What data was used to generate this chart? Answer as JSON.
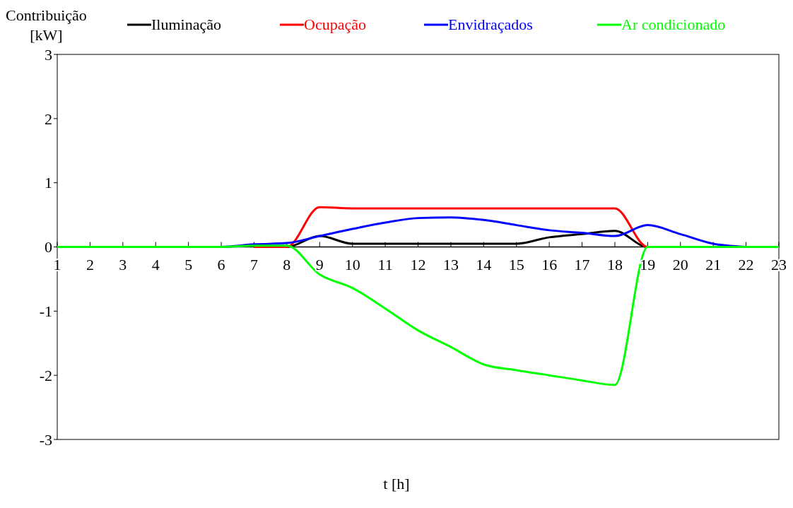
{
  "chart_data": {
    "type": "line",
    "xlabel": "t [h]",
    "ylabel": "Contribuição [kW]",
    "x": [
      1,
      2,
      3,
      4,
      5,
      6,
      7,
      8,
      9,
      10,
      11,
      12,
      13,
      14,
      15,
      16,
      17,
      18,
      19,
      20,
      21,
      22,
      23
    ],
    "series": [
      {
        "name": "Iluminação",
        "color": "#000000",
        "values": [
          null,
          null,
          null,
          null,
          null,
          null,
          0,
          0,
          0.17,
          0.05,
          0.05,
          0.05,
          0.05,
          0.05,
          0.05,
          0.15,
          0.2,
          0.25,
          0,
          0,
          null,
          null,
          null
        ]
      },
      {
        "name": "Ocupação",
        "color": "#ff0000",
        "values": [
          null,
          null,
          null,
          null,
          null,
          null,
          0,
          0,
          0.62,
          0.6,
          0.6,
          0.6,
          0.6,
          0.6,
          0.6,
          0.6,
          0.6,
          0.6,
          0,
          0,
          null,
          null,
          null
        ]
      },
      {
        "name": "Envidraçados",
        "color": "#0000ff",
        "values": [
          null,
          null,
          null,
          null,
          0,
          0,
          0.04,
          0.06,
          0.17,
          0.28,
          0.38,
          0.45,
          0.46,
          0.42,
          0.34,
          0.26,
          0.22,
          0.17,
          0.34,
          0.2,
          0.05,
          0,
          null
        ]
      },
      {
        "name": "Ar condicionado",
        "color": "#00ff00",
        "values": [
          0,
          0,
          0,
          0,
          0,
          0,
          0.02,
          0.02,
          -0.43,
          -0.64,
          -0.96,
          -1.3,
          -1.56,
          -1.83,
          -1.92,
          -2.0,
          -2.08,
          -2.15,
          0,
          0,
          0,
          0,
          0
        ]
      }
    ],
    "xlim": [
      1,
      23
    ],
    "xticks": [
      1,
      2,
      3,
      4,
      5,
      6,
      7,
      8,
      9,
      10,
      11,
      12,
      13,
      14,
      15,
      16,
      17,
      18,
      19,
      20,
      21,
      22,
      23
    ],
    "ylim": [
      -3,
      3
    ],
    "yticks": [
      -3,
      -2,
      -1,
      0,
      1,
      2,
      3
    ],
    "grid": false,
    "legend": "top",
    "marker": "none",
    "line_style": "solid"
  }
}
